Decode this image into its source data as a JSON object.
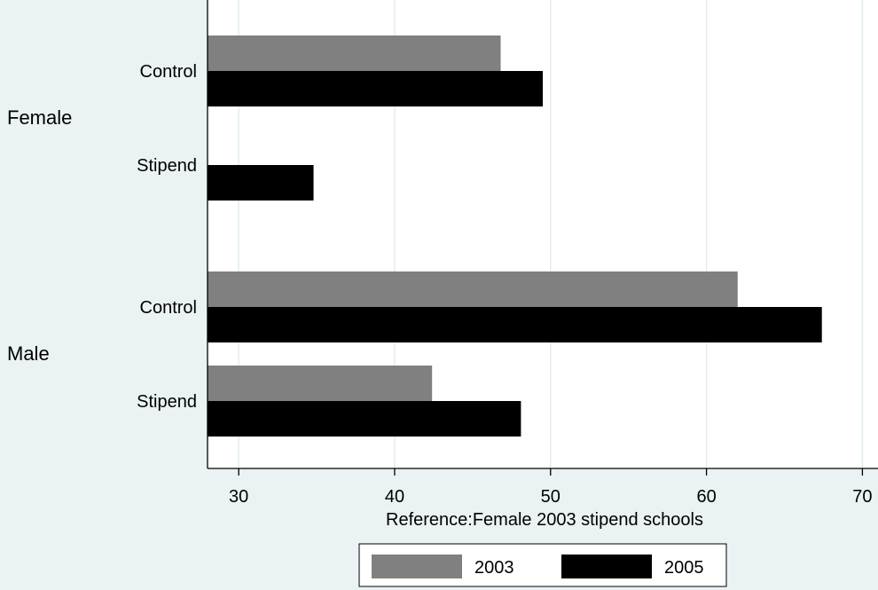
{
  "chart_data": {
    "type": "bar",
    "orientation": "horizontal",
    "groups": [
      {
        "name": "Female",
        "categories": [
          "Control",
          "Stipend"
        ]
      },
      {
        "name": "Male",
        "categories": [
          "Control",
          "Stipend"
        ]
      }
    ],
    "series": [
      {
        "name": "2003",
        "color": "#808080",
        "values": [
          46.8,
          null,
          62.0,
          42.4
        ]
      },
      {
        "name": "2005",
        "color": "#000000",
        "values": [
          49.5,
          34.8,
          67.4,
          48.1
        ]
      }
    ],
    "xlabel": "Reference:Female 2003 stipend schools",
    "xlim": [
      28,
      71
    ],
    "xticks": [
      30,
      40,
      50,
      60,
      70
    ],
    "grid": "vertical",
    "legend": {
      "position": "bottom",
      "entries": [
        "2003",
        "2005"
      ]
    },
    "colors": {
      "background": "#eaf2f3",
      "plot_background": "#ffffff",
      "grid": "#e3ecec"
    }
  }
}
